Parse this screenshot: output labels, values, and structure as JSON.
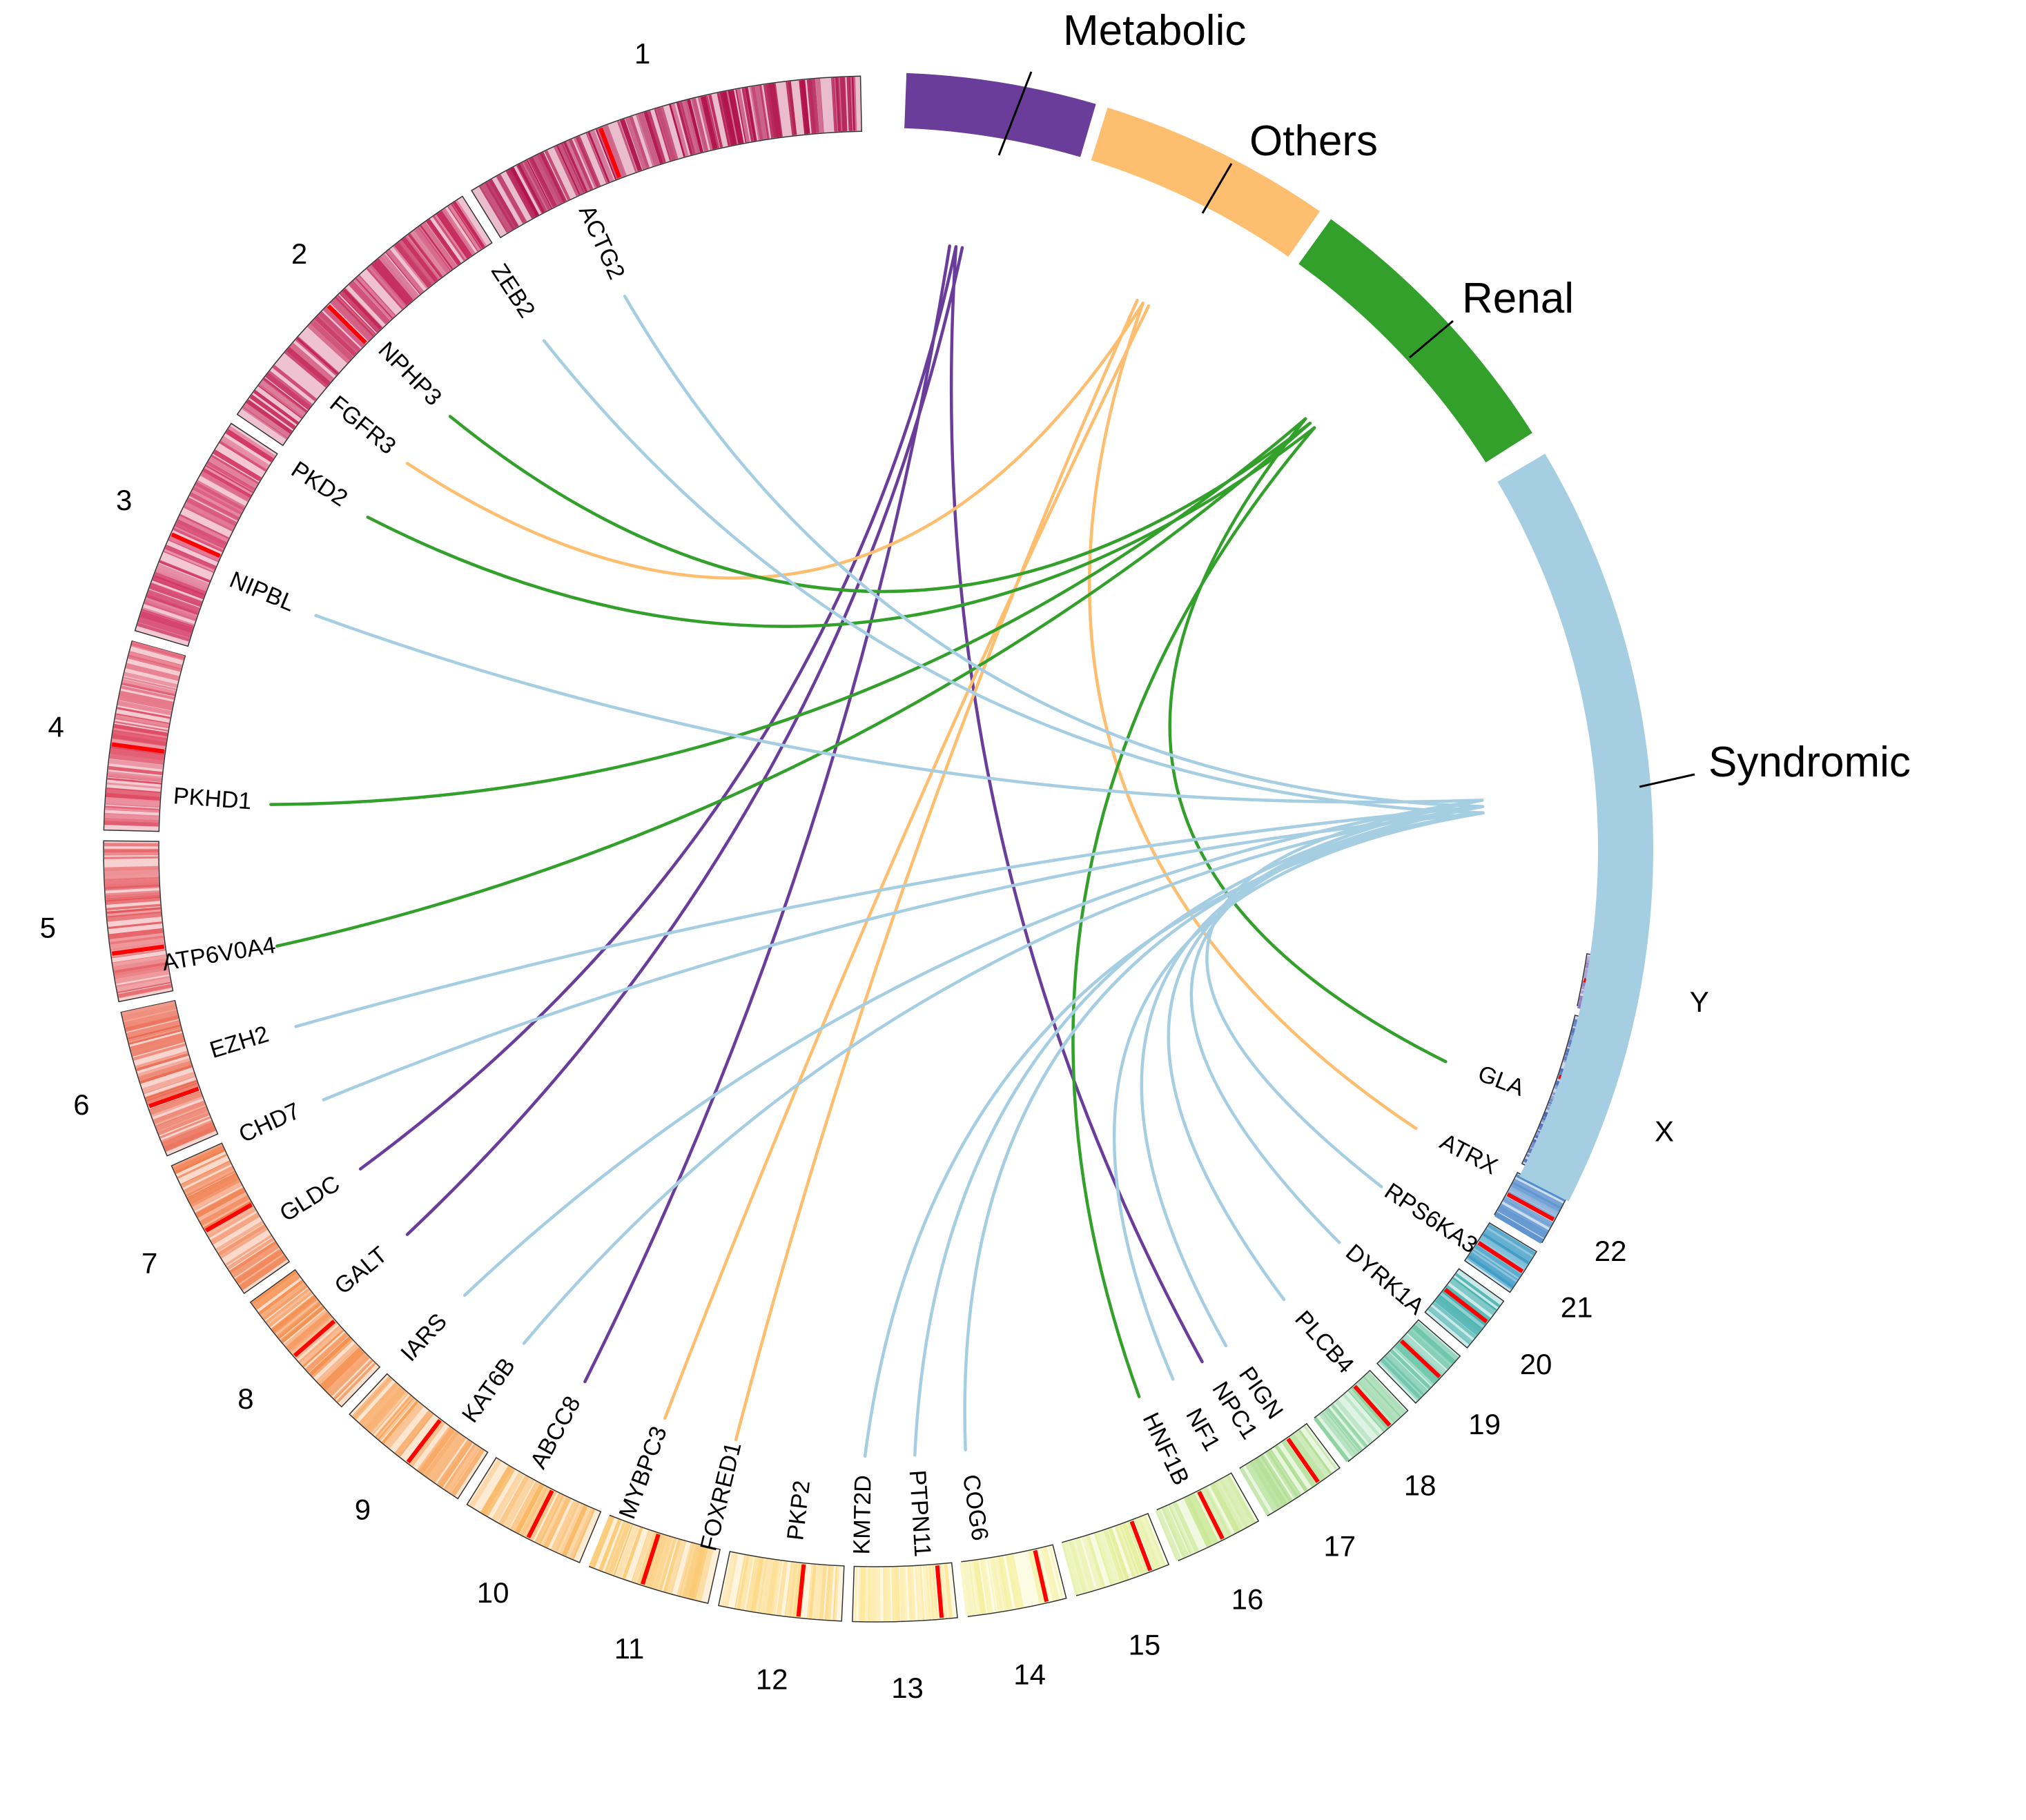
{
  "chromosomes": [
    {
      "name": "1",
      "ticks": [
        0.35
      ],
      "color": "#b0124a"
    },
    {
      "name": "2",
      "ticks": [
        0.45
      ],
      "color": "#c4265a"
    },
    {
      "name": "3",
      "ticks": [
        0.45
      ],
      "color": "#d33a66"
    },
    {
      "name": "4",
      "ticks": [
        0.45
      ],
      "color": "#de4a62"
    },
    {
      "name": "5",
      "ticks": [
        0.3
      ],
      "color": "#e4585e"
    },
    {
      "name": "6",
      "ticks": [
        0.35
      ],
      "color": "#ea6a52"
    },
    {
      "name": "7",
      "ticks": [
        0.5
      ],
      "color": "#f07c4a"
    },
    {
      "name": "8",
      "ticks": [
        0.5
      ],
      "color": "#f48e4c"
    },
    {
      "name": "9",
      "ticks": [
        0.45
      ],
      "color": "#f7a258"
    },
    {
      "name": "10",
      "ticks": [
        0.45
      ],
      "color": "#f9b966"
    },
    {
      "name": "11",
      "ticks": [
        0.55
      ],
      "color": "#fbcb76"
    },
    {
      "name": "12",
      "ticks": [
        0.35
      ],
      "color": "#fcdb88"
    },
    {
      "name": "13",
      "ticks": [
        0.15
      ],
      "color": "#fde89a"
    },
    {
      "name": "14",
      "ticks": [
        0.2
      ],
      "color": "#f5f0a0"
    },
    {
      "name": "15",
      "ticks": [
        0.2
      ],
      "color": "#e3ef9a"
    },
    {
      "name": "16",
      "ticks": [
        0.45
      ],
      "color": "#c9e793"
    },
    {
      "name": "17",
      "ticks": [
        0.3
      ],
      "color": "#addd8e"
    },
    {
      "name": "18",
      "ticks": [
        0.3
      ],
      "color": "#8ed3a0"
    },
    {
      "name": "19",
      "ticks": [
        0.45
      ],
      "color": "#6cc5a8"
    },
    {
      "name": "20",
      "ticks": [
        0.45
      ],
      "color": "#45b0ae"
    },
    {
      "name": "21",
      "ticks": [
        0.5
      ],
      "color": "#3d9bc4"
    },
    {
      "name": "22",
      "ticks": [
        0.5
      ],
      "color": "#4a86c8"
    },
    {
      "name": "X",
      "ticks": [
        0.4
      ],
      "color": "#4466b8"
    },
    {
      "name": "Y",
      "ticks": [
        0.5
      ],
      "color": "#8a72bf"
    }
  ],
  "categories": [
    {
      "name": "Metabolic",
      "color": "#6a3d9a"
    },
    {
      "name": "Others",
      "color": "#fdbf6f"
    },
    {
      "name": "Renal",
      "color": "#33a02c"
    },
    {
      "name": "Syndromic",
      "color": "#a6cee3"
    }
  ],
  "genes": [
    "ACTG2",
    "ZEB2",
    "NPHP3",
    "FGFR3",
    "PKD2",
    "NIPBL",
    "PKHD1",
    "ATP6V0A4",
    "EZH2",
    "CHD7",
    "GLDC",
    "GALT",
    "IARS",
    "KAT6B",
    "ABCC8",
    "MYBPC3",
    "FOXRED1",
    "PKP2",
    "KMT2D",
    "PTPN11",
    "COG6",
    "HNF1B",
    "NF1",
    "NPC1",
    "PIGN",
    "PLCB4",
    "DYRK1A",
    "RPS6KA3",
    "ATRX",
    "GLA"
  ],
  "links": [
    {
      "category": "Metabolic",
      "gene": "GLDC"
    },
    {
      "category": "Metabolic",
      "gene": "GALT"
    },
    {
      "category": "Metabolic",
      "gene": "ABCC8"
    },
    {
      "category": "Metabolic",
      "gene": "NPC1"
    },
    {
      "category": "Others",
      "gene": "FGFR3"
    },
    {
      "category": "Others",
      "gene": "MYBPC3"
    },
    {
      "category": "Others",
      "gene": "FOXRED1"
    },
    {
      "category": "Others",
      "gene": "ATRX"
    },
    {
      "category": "Renal",
      "gene": "NPHP3"
    },
    {
      "category": "Renal",
      "gene": "PKD2"
    },
    {
      "category": "Renal",
      "gene": "PKHD1"
    },
    {
      "category": "Renal",
      "gene": "ATP6V0A4"
    },
    {
      "category": "Renal",
      "gene": "HNF1B"
    },
    {
      "category": "Renal",
      "gene": "GLA"
    },
    {
      "category": "Syndromic",
      "gene": "ACTG2"
    },
    {
      "category": "Syndromic",
      "gene": "ZEB2"
    },
    {
      "category": "Syndromic",
      "gene": "NIPBL"
    },
    {
      "category": "Syndromic",
      "gene": "EZH2"
    },
    {
      "category": "Syndromic",
      "gene": "CHD7"
    },
    {
      "category": "Syndromic",
      "gene": "IARS"
    },
    {
      "category": "Syndromic",
      "gene": "KAT6B"
    },
    {
      "category": "Syndromic",
      "gene": "KMT2D"
    },
    {
      "category": "Syndromic",
      "gene": "PTPN11"
    },
    {
      "category": "Syndromic",
      "gene": "COG6"
    },
    {
      "category": "Syndromic",
      "gene": "NF1"
    },
    {
      "category": "Syndromic",
      "gene": "PIGN"
    },
    {
      "category": "Syndromic",
      "gene": "PLCB4"
    },
    {
      "category": "Syndromic",
      "gene": "DYRK1A"
    },
    {
      "category": "Syndromic",
      "gene": "RPS6KA3"
    }
  ]
}
